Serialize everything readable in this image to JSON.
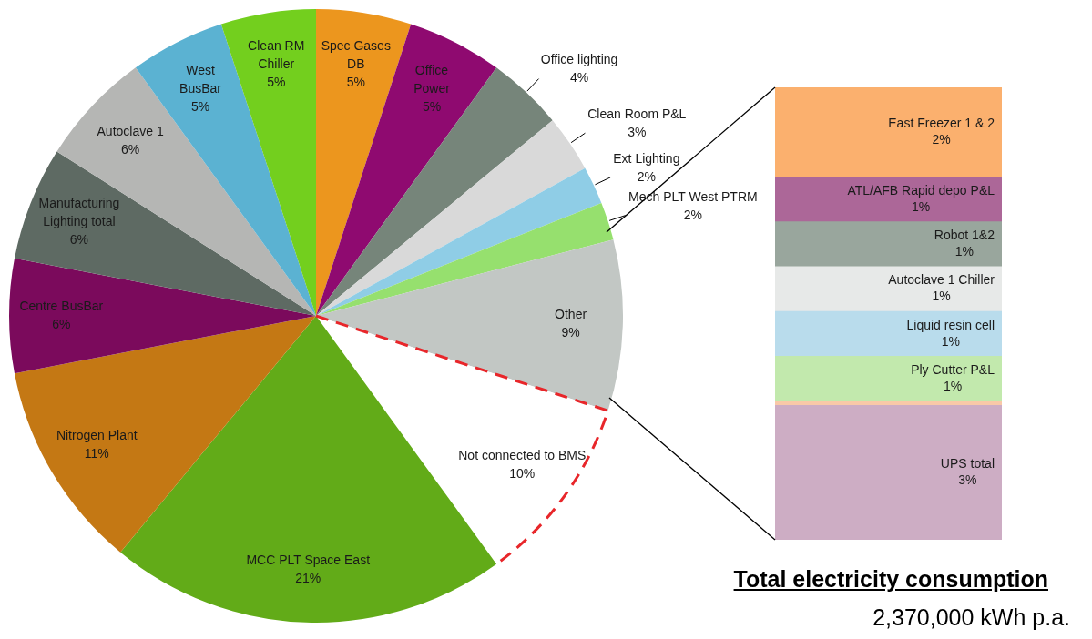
{
  "chart_data": [
    {
      "type": "pie",
      "title": "Total electricity consumption",
      "subtitle": "2,370,000 kWh p.a.",
      "categories": [
        "Spec Gases DB",
        "Office Power",
        "Office lighting",
        "Clean Room P&L",
        "Ext Lighting",
        "Mech PLT West PTRM",
        "Other",
        "Not connected to BMS",
        "MCC PLT Space East",
        "Nitrogen Plant",
        "Centre BusBar",
        "Manufacturing Lighting total",
        "Autoclave 1",
        "West BusBar",
        "Clean RM Chiller"
      ],
      "values": [
        5,
        5,
        4,
        3,
        2,
        2,
        9,
        10,
        21,
        11,
        6,
        6,
        6,
        5,
        5
      ],
      "value_labels": [
        "5%",
        "5%",
        "4%",
        "3%",
        "2%",
        "2%",
        "9%",
        "10%",
        "21%",
        "11%",
        "6%",
        "6%",
        "6%",
        "5%",
        "5%"
      ],
      "colors": [
        "#ec961e",
        "#8f0a70",
        "#76857a",
        "#d9d9d9",
        "#8fcde6",
        "#96e06e",
        "#c2c7c4",
        "#ffffff",
        "#62ab18",
        "#c47814",
        "#7b0a5c",
        "#5e6a63",
        "#b5b6b4",
        "#5bb2d2",
        "#73cf1e"
      ]
    },
    {
      "type": "bar",
      "stacked": true,
      "tick_labels": false,
      "categories": [
        null
      ],
      "series": [
        {
          "name": "UPS total",
          "color": "#cdadc4",
          "values": [
            3
          ],
          "value_labels": [
            "3%"
          ]
        },
        {
          "color": "#f9c9a8",
          "values": [
            0.1
          ]
        },
        {
          "name": "Ply Cutter P&L",
          "color": "#c2e9ad",
          "values": [
            1
          ],
          "value_labels": [
            "1%"
          ]
        },
        {
          "name": "Liquid resin cell",
          "color": "#b9dcec",
          "values": [
            1
          ],
          "value_labels": [
            "1%"
          ]
        },
        {
          "name": "Autoclave 1 Chiller",
          "color": "#e7e9e8",
          "values": [
            1
          ],
          "value_labels": [
            "1%"
          ]
        },
        {
          "name": "Robot 1&2",
          "color": "#99a69d",
          "values": [
            1
          ],
          "value_labels": [
            "1%"
          ]
        },
        {
          "name": "ATL/AFB Rapid depo P&L",
          "color": "#ac6798",
          "values": [
            1
          ],
          "value_labels": [
            "1%"
          ]
        },
        {
          "name": "East Freezer 1 & 2",
          "color": "#fbb06e",
          "values": [
            2
          ],
          "value_labels": [
            "2%"
          ]
        }
      ]
    }
  ]
}
